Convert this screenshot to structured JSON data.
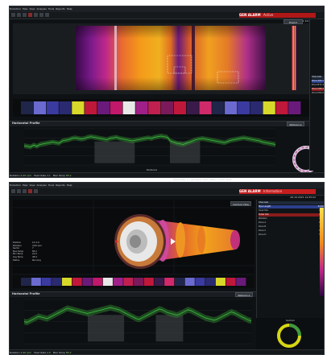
{
  "colors": {
    "alarm_red": "#b01818",
    "profile_green": "#3cc43c",
    "selection_blue": "#2c3f8c",
    "ring_yellow": "#d6d614",
    "ring_green": "#3e9a3e"
  },
  "icons": [
    "app-icon",
    "toolbar-icon",
    "ring-view-icon",
    "marker-triangle-icon"
  ],
  "window_top": {
    "menu": [
      "Evolution",
      "Pipe",
      "View",
      "Analysis",
      "Tools",
      "Reports",
      "Help"
    ],
    "alarm_title": "GEN ALARM",
    "alarm_sub": "Active",
    "timestamp": "26.10.2021 12:04:31",
    "thermal_button": "Export",
    "profile_title": "Horizontal Profile",
    "profile_button": "Reference",
    "profile_xlabel": "Distance",
    "status": {
      "rotation_label": "Rotation",
      "rotation_value": "4.00 rpm",
      "field_label": "Feed Rate",
      "field_value": "2.1",
      "max_label": "Max Temp",
      "max_value": "85.2"
    },
    "footer_note": "Pulse Ratio: 5 | Sampling: Auto | Rate: 4 | ROI: 1024"
  },
  "window_bottom": {
    "menu": [
      "Evolution",
      "Pipe",
      "View",
      "Analysis",
      "Tools",
      "Reports",
      "Help"
    ],
    "alarm_title": "GEN ALARM",
    "alarm_sub": "Information",
    "timestamp": "26.10.2021 12:05:02",
    "view_button": "Camera View",
    "info_rows": [
      {
        "k": "Position",
        "v": "12.4 m"
      },
      {
        "k": "Rotation",
        "v": "4.00 rpm"
      },
      {
        "k": "Sector",
        "v": "7"
      },
      {
        "k": "Max Temp",
        "v": "85.2"
      },
      {
        "k": "Min Temp",
        "v": "21.6"
      },
      {
        "k": "Avg Temp",
        "v": "48.9"
      },
      {
        "k": "Status",
        "v": "Running"
      }
    ],
    "side_header": "Channels",
    "side_rows": [
      {
        "k": "Pipe Length",
        "v": "24.00"
      },
      {
        "k": "Inner Dia",
        "v": "0.82"
      },
      {
        "k": "Outer Dia",
        "v": "1.10"
      },
      {
        "k": "Rotation",
        "v": "4.00"
      },
      {
        "k": "Zone A",
        "v": "62.1"
      },
      {
        "k": "Zone B",
        "v": "71.4"
      },
      {
        "k": "Zone C",
        "v": "85.2"
      },
      {
        "k": "Zone D",
        "v": "54.0"
      }
    ],
    "profile_title": "Horizontal Profile",
    "profile_button": "Reference",
    "status": {
      "rotation_label": "Rotation",
      "rotation_value": "3.90 rpm",
      "field_label": "Feed Rate",
      "field_value": "2.0",
      "max_label": "Max Temp",
      "max_value": "85.2"
    },
    "ring_label": "Section"
  },
  "side_top": {
    "header": "Channels",
    "rows": [
      {
        "k": "Zone A",
        "v": "62.1"
      },
      {
        "k": "Zone B",
        "v": "71.4"
      },
      {
        "k": "Zone C",
        "v": "85.2"
      },
      {
        "k": "Zone D",
        "v": "54.0"
      }
    ]
  },
  "chart_data": [
    {
      "type": "line",
      "title": "Horizontal Profile",
      "xlabel": "Distance",
      "ylabel": "",
      "series": [
        {
          "values": [
            32,
            31,
            30,
            33,
            31,
            34,
            35,
            36,
            37,
            38,
            37,
            36,
            40,
            41,
            42,
            44,
            45,
            44,
            43,
            44,
            46,
            47,
            46,
            45,
            44,
            43,
            42,
            44,
            45,
            46,
            44,
            43,
            42,
            41,
            40,
            41,
            42,
            43,
            44,
            45,
            44,
            46,
            47,
            48,
            47,
            46,
            40,
            38,
            36,
            35,
            34,
            36,
            38,
            40,
            42,
            43,
            44,
            43,
            42,
            41,
            40,
            39,
            38,
            37,
            39,
            41,
            42,
            43,
            44,
            45,
            44,
            43,
            42,
            41,
            40,
            38,
            37,
            36,
            35,
            34
          ]
        }
      ],
      "ylim": [
        0,
        60
      ]
    },
    {
      "type": "line",
      "title": "Horizontal Profile",
      "xlabel": "",
      "ylabel": "",
      "series": [
        {
          "values": [
            30,
            29,
            31,
            33,
            35,
            37,
            36,
            35,
            34,
            36,
            38,
            40,
            42,
            44,
            46,
            48,
            47,
            46,
            45,
            44,
            43,
            42,
            41,
            42,
            43,
            44,
            45,
            46,
            47,
            48,
            49,
            48,
            47,
            46,
            44,
            42,
            40,
            38,
            36,
            34,
            33,
            35,
            37,
            39,
            41,
            43,
            45,
            47,
            46,
            44,
            42,
            41,
            40,
            39,
            40,
            42,
            44,
            46,
            45,
            43,
            41,
            39,
            37,
            35,
            34,
            33,
            32,
            33,
            35,
            37,
            39,
            41,
            43,
            42,
            40,
            38,
            36,
            34,
            32,
            31
          ]
        }
      ],
      "ylim": [
        0,
        60
      ]
    }
  ]
}
